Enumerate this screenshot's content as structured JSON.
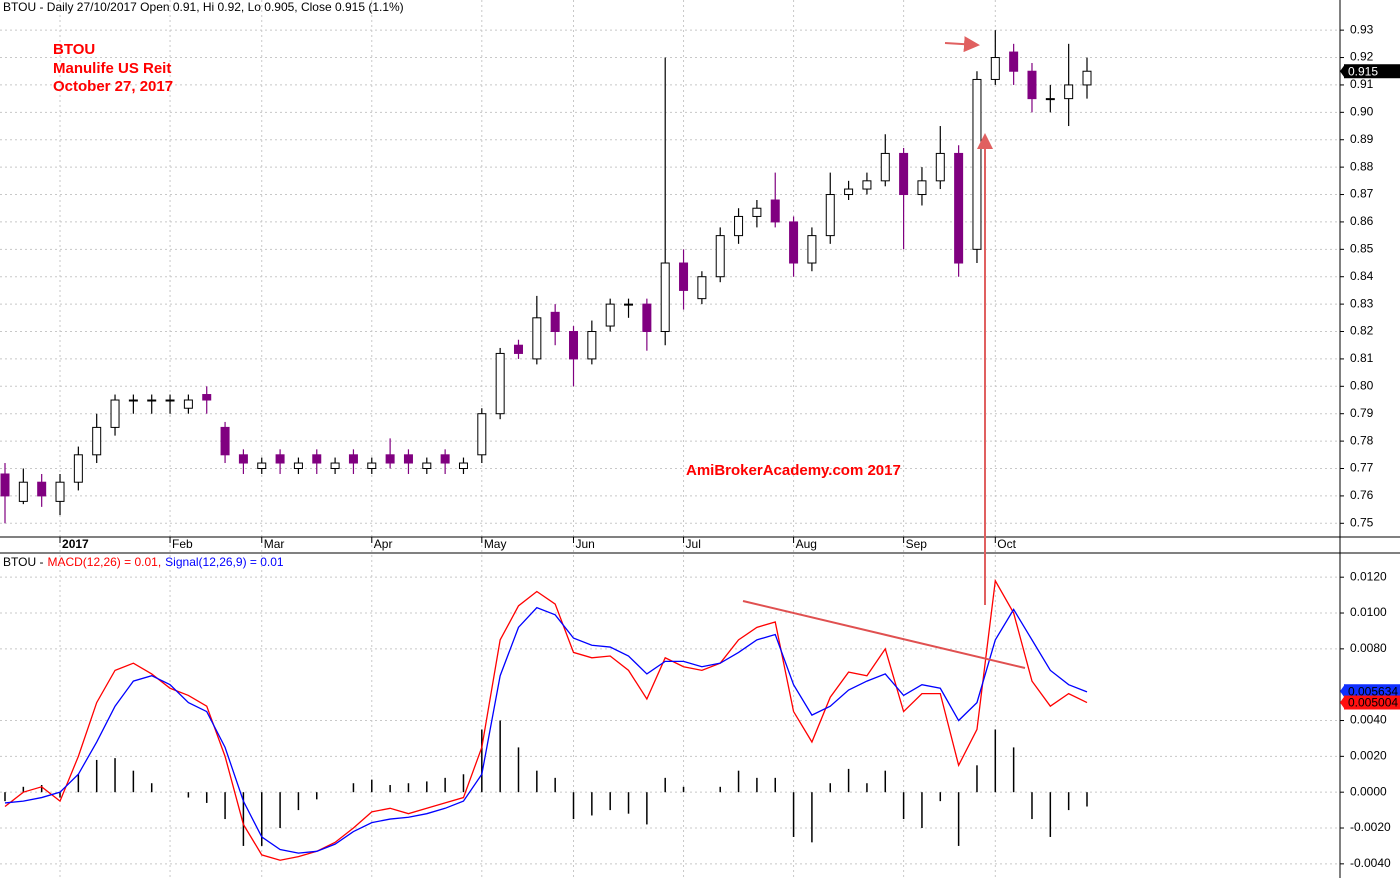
{
  "chart_data": [
    {
      "type": "candlestick",
      "title": "BTOU - Daily 27/10/2017 Open 0.91, Hi 0.92, Lo 0.905, Close 0.915 (1.1%)",
      "annotations": [
        "BTOU",
        "Manulife US Reit",
        "October 27, 2017",
        "AmiBrokerAcademy.com  2017"
      ],
      "categories": [
        null,
        null,
        null,
        "2017",
        null,
        null,
        null,
        null,
        null,
        "Feb",
        null,
        null,
        null,
        null,
        "Mar",
        null,
        null,
        null,
        null,
        null,
        "Apr",
        null,
        null,
        null,
        null,
        null,
        "May",
        null,
        null,
        null,
        null,
        "Jun",
        null,
        null,
        null,
        null,
        null,
        "Jul",
        null,
        null,
        null,
        null,
        null,
        "Aug",
        null,
        null,
        null,
        null,
        null,
        "Sep",
        null,
        null,
        null,
        null,
        "Oct",
        null,
        null,
        null,
        null,
        null
      ],
      "open": [
        0.768,
        0.758,
        0.765,
        0.758,
        0.765,
        0.775,
        0.785,
        0.795,
        0.795,
        0.795,
        0.792,
        0.797,
        0.785,
        0.775,
        0.77,
        0.775,
        0.77,
        0.775,
        0.77,
        0.775,
        0.77,
        0.775,
        0.775,
        0.77,
        0.775,
        0.77,
        0.775,
        0.79,
        0.815,
        0.81,
        0.827,
        0.82,
        0.81,
        0.822,
        0.83,
        0.83,
        0.82,
        0.845,
        0.832,
        0.84,
        0.855,
        0.862,
        0.868,
        0.86,
        0.845,
        0.855,
        0.87,
        0.872,
        0.875,
        0.885,
        0.87,
        0.875,
        0.885,
        0.85,
        0.912,
        0.922,
        0.915,
        0.905,
        0.905,
        0.91
      ],
      "high": [
        0.772,
        0.77,
        0.768,
        0.768,
        0.778,
        0.79,
        0.797,
        0.797,
        0.797,
        0.797,
        0.797,
        0.8,
        0.787,
        0.777,
        0.774,
        0.777,
        0.774,
        0.777,
        0.774,
        0.777,
        0.774,
        0.781,
        0.777,
        0.774,
        0.777,
        0.774,
        0.792,
        0.814,
        0.817,
        0.833,
        0.83,
        0.822,
        0.824,
        0.832,
        0.832,
        0.832,
        0.92,
        0.85,
        0.842,
        0.858,
        0.865,
        0.868,
        0.878,
        0.862,
        0.858,
        0.878,
        0.875,
        0.878,
        0.892,
        0.887,
        0.88,
        0.895,
        0.888,
        0.915,
        0.93,
        0.925,
        0.918,
        0.91,
        0.925,
        0.92
      ],
      "low": [
        0.75,
        0.757,
        0.756,
        0.753,
        0.762,
        0.772,
        0.782,
        0.79,
        0.79,
        0.79,
        0.79,
        0.79,
        0.772,
        0.768,
        0.768,
        0.768,
        0.768,
        0.768,
        0.768,
        0.768,
        0.768,
        0.77,
        0.768,
        0.768,
        0.768,
        0.768,
        0.772,
        0.788,
        0.81,
        0.808,
        0.815,
        0.8,
        0.808,
        0.82,
        0.825,
        0.813,
        0.815,
        0.828,
        0.83,
        0.838,
        0.852,
        0.858,
        0.858,
        0.84,
        0.842,
        0.852,
        0.868,
        0.87,
        0.873,
        0.85,
        0.866,
        0.872,
        0.84,
        0.845,
        0.91,
        0.91,
        0.9,
        0.9,
        0.895,
        0.905
      ],
      "close": [
        0.76,
        0.765,
        0.76,
        0.765,
        0.775,
        0.785,
        0.795,
        0.795,
        0.795,
        0.795,
        0.795,
        0.795,
        0.775,
        0.772,
        0.772,
        0.772,
        0.772,
        0.772,
        0.772,
        0.772,
        0.772,
        0.772,
        0.772,
        0.772,
        0.772,
        0.772,
        0.79,
        0.812,
        0.812,
        0.825,
        0.82,
        0.81,
        0.82,
        0.83,
        0.83,
        0.82,
        0.845,
        0.835,
        0.84,
        0.855,
        0.862,
        0.865,
        0.86,
        0.845,
        0.855,
        0.87,
        0.872,
        0.875,
        0.885,
        0.87,
        0.875,
        0.885,
        0.845,
        0.912,
        0.92,
        0.915,
        0.905,
        0.905,
        0.91,
        0.915
      ],
      "up_color": "#ffffff",
      "down_color": "#800080",
      "ylim": [
        0.745,
        0.941
      ],
      "yticks": [
        0.75,
        0.76,
        0.77,
        0.78,
        0.79,
        {
          "value": 0.8,
          "label": "0.80"
        },
        0.81,
        0.82,
        0.83,
        0.84,
        0.85,
        0.86,
        0.87,
        0.88,
        0.89,
        {
          "value": 0.9,
          "label": "0.90"
        },
        0.91,
        0.92,
        0.93
      ],
      "last_value": 0.915,
      "grid": true
    },
    {
      "type": "macd",
      "title": "BTOU -",
      "series": [
        {
          "name": "MACD(12,26) = 0.01,",
          "color": "#ff0000",
          "values": [
            -0.0008,
            0.0,
            0.0003,
            -0.0005,
            0.002,
            0.005,
            0.0068,
            0.0072,
            0.0066,
            0.0058,
            0.0054,
            0.0048,
            0.002,
            -0.0018,
            -0.0035,
            -0.0038,
            -0.0036,
            -0.0033,
            -0.0028,
            -0.002,
            -0.0011,
            -0.0009,
            -0.0012,
            -0.0009,
            -0.0006,
            -0.0003,
            0.0025,
            0.0085,
            0.0104,
            0.0112,
            0.0105,
            0.0078,
            0.0075,
            0.0076,
            0.0068,
            0.0052,
            0.0075,
            0.007,
            0.0068,
            0.0072,
            0.0085,
            0.0092,
            0.0095,
            0.0045,
            0.0028,
            0.0053,
            0.0067,
            0.0065,
            0.008,
            0.0045,
            0.0055,
            0.0055,
            0.0015,
            0.0035,
            0.0118,
            0.01,
            0.0062,
            0.0048,
            0.0055,
            0.005
          ]
        },
        {
          "name": "Signal(12,26,9) = 0.01",
          "color": "#0000ff",
          "values": [
            -0.0006,
            -0.0005,
            -0.0003,
            0.0,
            0.001,
            0.0028,
            0.0048,
            0.0062,
            0.0065,
            0.006,
            0.005,
            0.0045,
            0.0025,
            -0.0005,
            -0.0025,
            -0.0032,
            -0.0034,
            -0.0033,
            -0.0029,
            -0.0022,
            -0.0017,
            -0.0015,
            -0.0014,
            -0.0012,
            -0.0009,
            -0.0005,
            0.001,
            0.0065,
            0.0092,
            0.0103,
            0.0099,
            0.0086,
            0.0082,
            0.0081,
            0.0076,
            0.0066,
            0.0073,
            0.0073,
            0.007,
            0.0072,
            0.0078,
            0.0085,
            0.0088,
            0.006,
            0.0043,
            0.0048,
            0.0057,
            0.0062,
            0.0066,
            0.0054,
            0.006,
            0.0058,
            0.004,
            0.005,
            0.0085,
            0.0102,
            0.0085,
            0.0068,
            0.006,
            0.0056
          ]
        }
      ],
      "histogram": {
        "color": "#000000",
        "values": [
          -0.0005,
          0.0003,
          0.0004,
          -0.0003,
          0.001,
          0.0018,
          0.0019,
          0.0012,
          0.0005,
          0.0,
          -0.0003,
          -0.0006,
          -0.0015,
          -0.003,
          -0.003,
          -0.002,
          -0.001,
          -0.0004,
          0.0,
          0.0005,
          0.0007,
          0.0004,
          0.0005,
          0.0006,
          0.0008,
          0.001,
          0.0035,
          0.004,
          0.0025,
          0.0012,
          0.0008,
          -0.0015,
          -0.0013,
          -0.001,
          -0.0012,
          -0.0018,
          0.0008,
          0.0003,
          0.0,
          0.0003,
          0.0012,
          0.0008,
          0.0008,
          -0.0025,
          -0.0028,
          0.0005,
          0.0013,
          0.0005,
          0.0012,
          -0.0015,
          -0.002,
          -0.0005,
          -0.003,
          0.0015,
          0.0035,
          0.0025,
          -0.0015,
          -0.0025,
          -0.001,
          -0.0008
        ]
      },
      "last_labels": [
        0.005634,
        0.005004
      ],
      "ylim": [
        -0.00479,
        0.01335
      ],
      "yticks": [
        {
          "value": 0.012,
          "label": "0.0120"
        },
        {
          "value": 0.01,
          "label": "0.0100"
        },
        {
          "value": 0.008,
          "label": "0.0080"
        },
        {
          "value": 0.004,
          "label": "0.0040"
        },
        {
          "value": 0.002,
          "label": "0.0020"
        },
        {
          "value": 0,
          "label": "0.0000"
        },
        {
          "value": -0.002,
          "label": "-0.0020"
        },
        {
          "value": -0.004,
          "label": "-0.0040"
        }
      ],
      "grid": true
    }
  ]
}
